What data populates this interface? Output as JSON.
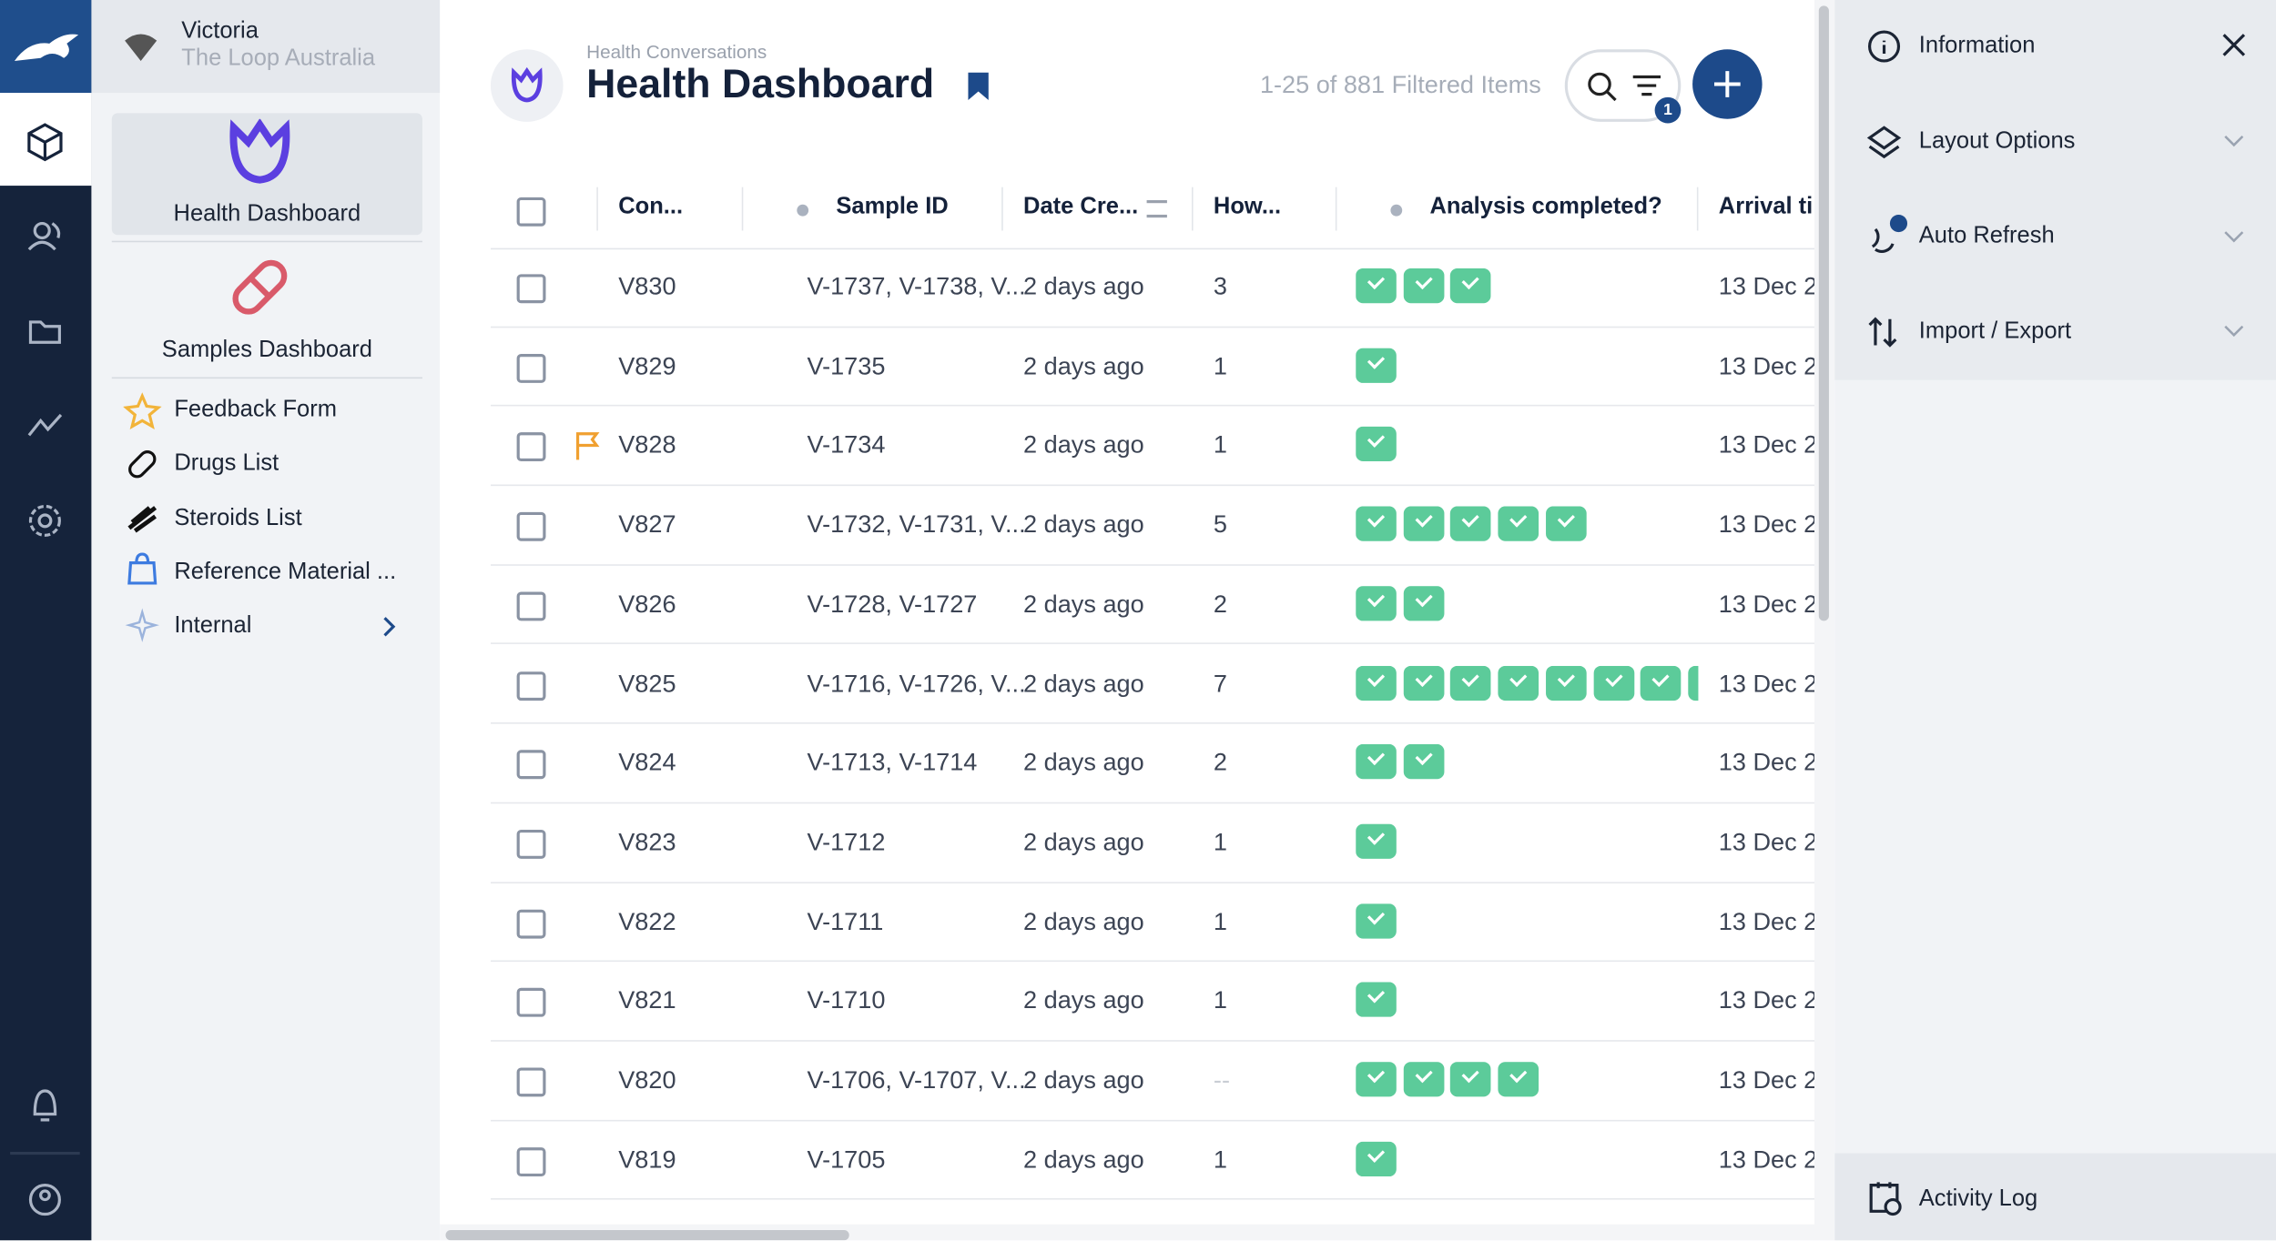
{
  "nav": {
    "user": "Victoria",
    "org": "The Loop Australia"
  },
  "sidebar": {
    "tiles": [
      "Health Dashboard",
      "Samples Dashboard"
    ],
    "links": [
      "Feedback Form",
      "Drugs List",
      "Steroids List",
      "Reference Material ...",
      "Internal"
    ]
  },
  "header": {
    "breadcrumb": "Health Conversations",
    "title": "Health Dashboard",
    "count": "1-25 of 881 Filtered Items",
    "filter_badge": "1"
  },
  "table": {
    "columns": [
      "Con...",
      "Sample ID",
      "Date Cre...",
      "How...",
      "Analysis completed?",
      "Arrival ti"
    ],
    "rows": [
      {
        "id": "V830",
        "samples": "V-1737, V-1738, V...",
        "date": "2 days ago",
        "how": "3",
        "checks": 3,
        "arrival": "13 Dec 2",
        "flag": false
      },
      {
        "id": "V829",
        "samples": "V-1735",
        "date": "2 days ago",
        "how": "1",
        "checks": 1,
        "arrival": "13 Dec 2",
        "flag": false
      },
      {
        "id": "V828",
        "samples": "V-1734",
        "date": "2 days ago",
        "how": "1",
        "checks": 1,
        "arrival": "13 Dec 2",
        "flag": true
      },
      {
        "id": "V827",
        "samples": "V-1732, V-1731, V...",
        "date": "2 days ago",
        "how": "5",
        "checks": 5,
        "arrival": "13 Dec 2",
        "flag": false
      },
      {
        "id": "V826",
        "samples": "V-1728, V-1727",
        "date": "2 days ago",
        "how": "2",
        "checks": 2,
        "arrival": "13 Dec 2",
        "flag": false
      },
      {
        "id": "V825",
        "samples": "V-1716, V-1726, V...",
        "date": "2 days ago",
        "how": "7",
        "checks": 8,
        "arrival": "13 Dec 2",
        "flag": false
      },
      {
        "id": "V824",
        "samples": "V-1713, V-1714",
        "date": "2 days ago",
        "how": "2",
        "checks": 2,
        "arrival": "13 Dec 2",
        "flag": false
      },
      {
        "id": "V823",
        "samples": "V-1712",
        "date": "2 days ago",
        "how": "1",
        "checks": 1,
        "arrival": "13 Dec 2",
        "flag": false
      },
      {
        "id": "V822",
        "samples": "V-1711",
        "date": "2 days ago",
        "how": "1",
        "checks": 1,
        "arrival": "13 Dec 2",
        "flag": false
      },
      {
        "id": "V821",
        "samples": "V-1710",
        "date": "2 days ago",
        "how": "1",
        "checks": 1,
        "arrival": "13 Dec 2",
        "flag": false
      },
      {
        "id": "V820",
        "samples": "V-1706, V-1707, V...",
        "date": "2 days ago",
        "how": "--",
        "checks": 4,
        "arrival": "13 Dec 2",
        "flag": false
      },
      {
        "id": "V819",
        "samples": "V-1705",
        "date": "2 days ago",
        "how": "1",
        "checks": 1,
        "arrival": "13 Dec 2",
        "flag": false
      }
    ]
  },
  "panel": {
    "items": [
      "Information",
      "Layout Options",
      "Auto Refresh",
      "Import / Export"
    ],
    "footer": "Activity Log"
  }
}
